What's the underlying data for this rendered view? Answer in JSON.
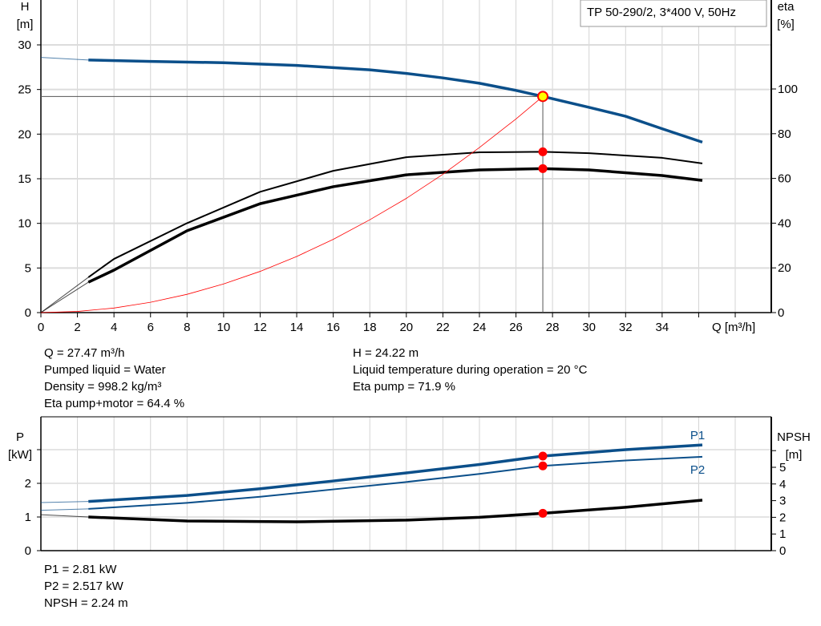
{
  "chart_data": [
    {
      "type": "line",
      "title": "TP 50-290/2, 3*400 V, 50Hz",
      "xlabel": "Q [m³/h]",
      "ylabel_left": [
        "H",
        "[m]"
      ],
      "ylabel_right": [
        "eta",
        "[%]"
      ],
      "xlim": [
        0,
        38
      ],
      "ylim_left": [
        0,
        30
      ],
      "ylim_right": [
        0,
        100
      ],
      "x_ticks": [
        "0",
        "2",
        "4",
        "6",
        "8",
        "10",
        "12",
        "14",
        "16",
        "18",
        "20",
        "22",
        "24",
        "26",
        "28",
        "30",
        "32",
        "34"
      ],
      "y_ticks_left": [
        "0",
        "5",
        "10",
        "15",
        "20",
        "25",
        "30"
      ],
      "y_ticks_right": [
        "0",
        "20",
        "40",
        "60",
        "80",
        "100"
      ],
      "grid": true,
      "series": [
        {
          "id": "H",
          "axis": "left",
          "color": "#0b4f8a",
          "x": [
            0,
            2.6,
            6,
            10,
            14,
            18,
            20,
            22,
            24,
            26,
            27.47,
            30,
            32,
            34,
            36.2
          ],
          "y": [
            28.6,
            28.3,
            28.15,
            28.0,
            27.7,
            27.2,
            26.8,
            26.3,
            25.7,
            24.9,
            24.22,
            23.0,
            22.0,
            20.6,
            19.1
          ]
        },
        {
          "id": "eta-pump",
          "axis": "right",
          "color": "#000000",
          "x": [
            0,
            2.6,
            4,
            8,
            12,
            16,
            20,
            24,
            27.47,
            30,
            34,
            36.2
          ],
          "y": [
            0,
            15.8,
            24,
            40,
            54,
            63.4,
            69.5,
            71.7,
            71.9,
            71.3,
            69.2,
            66.7
          ]
        },
        {
          "id": "eta-pump-motor",
          "axis": "right",
          "color": "#000000",
          "x": [
            0,
            2.6,
            4,
            8,
            12,
            16,
            20,
            24,
            27.47,
            30,
            34,
            36.2
          ],
          "y": [
            0,
            13.6,
            19,
            36.6,
            48.7,
            56.3,
            61.6,
            63.8,
            64.4,
            63.8,
            61.3,
            59.1
          ]
        },
        {
          "id": "system-curve",
          "axis": "left",
          "color": "#ff0000",
          "x": [
            0,
            2,
            4,
            6,
            8,
            10,
            12,
            14,
            16,
            18,
            20,
            22,
            24,
            26,
            27.47
          ],
          "y": [
            0,
            0.13,
            0.51,
            1.16,
            2.05,
            3.21,
            4.62,
            6.29,
            8.21,
            10.4,
            12.8,
            15.5,
            18.5,
            21.7,
            24.22
          ]
        }
      ],
      "operating_point": {
        "Q": 27.47,
        "H": 24.22,
        "eta_pump": 71.9,
        "eta_pump_motor": 64.4
      }
    },
    {
      "type": "line",
      "ylabel_left": [
        "P",
        "[kW]"
      ],
      "ylabel_right": [
        "NPSH",
        "[m]"
      ],
      "xlim": [
        0,
        38
      ],
      "ylim_left": [
        0,
        3.8
      ],
      "ylim_right": [
        0,
        7.6
      ],
      "y_ticks_left": [
        "0",
        "1",
        "2"
      ],
      "y_ticks_right": [
        "0",
        "1",
        "2",
        "3",
        "4",
        "5"
      ],
      "grid": true,
      "series": [
        {
          "id": "P1",
          "name": "P1",
          "axis": "left",
          "color": "#0b4f8a",
          "x": [
            0,
            2.6,
            8,
            12,
            16,
            20,
            24,
            27.47,
            32,
            36.2
          ],
          "y": [
            1.43,
            1.46,
            1.64,
            1.84,
            2.07,
            2.31,
            2.56,
            2.81,
            3.0,
            3.14
          ]
        },
        {
          "id": "P2",
          "name": "P2",
          "axis": "left",
          "color": "#0b4f8a",
          "x": [
            0,
            2.6,
            8,
            12,
            16,
            20,
            24,
            27.47,
            32,
            36.2
          ],
          "y": [
            1.2,
            1.24,
            1.42,
            1.6,
            1.82,
            2.04,
            2.28,
            2.517,
            2.68,
            2.79
          ]
        },
        {
          "id": "NPSH",
          "axis": "right",
          "color": "#000000",
          "x": [
            0,
            2.6,
            8,
            14,
            20,
            24,
            27.47,
            32,
            36.2
          ],
          "y": [
            2.16,
            2.02,
            1.78,
            1.73,
            1.83,
            2.0,
            2.24,
            2.6,
            3.03
          ]
        }
      ],
      "operating_point": {
        "P1": 2.81,
        "P2": 2.517,
        "NPSH": 2.24
      }
    }
  ],
  "info_top_left": [
    "Q = 27.47 m³/h",
    "Pumped liquid = Water",
    "Density = 998.2 kg/m³",
    "Eta pump+motor = 64.4 %"
  ],
  "info_top_right": [
    "H = 24.22 m",
    "Liquid temperature during operation = 20 °C",
    "Eta pump = 71.9 %"
  ],
  "info_bottom": [
    "P1 = 2.81 kW",
    "P2 = 2.517 kW",
    "NPSH = 2.24 m"
  ],
  "colors": {
    "curve_blue": "#0b4f8a",
    "op_point": "#ff0000",
    "op_highlight": "#ffff00",
    "grid": "#d4d4d4"
  }
}
